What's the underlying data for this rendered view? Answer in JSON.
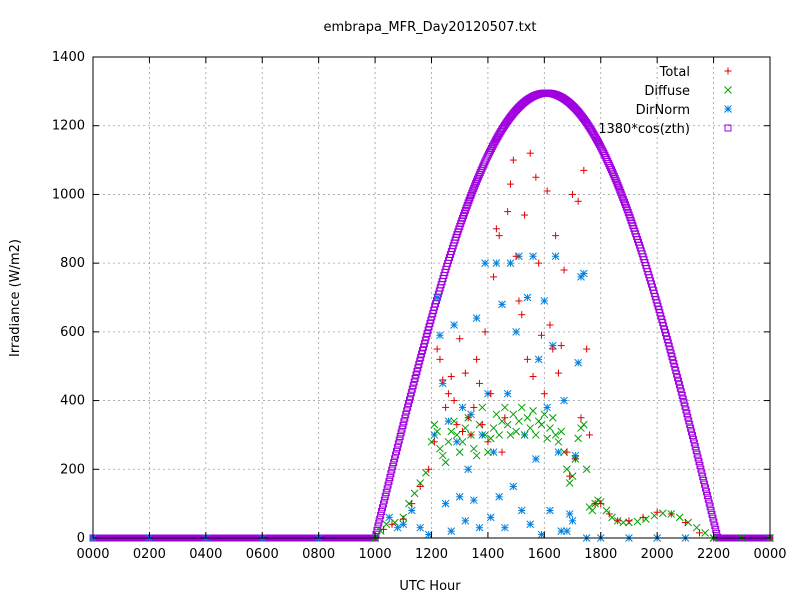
{
  "chart_data": {
    "type": "scatter",
    "title": "embrapa_MFR_Day20120507.txt",
    "xlabel": "UTC Hour",
    "ylabel": "Irradiance (W/m2)",
    "xlim": [
      0,
      24
    ],
    "ylim": [
      0,
      1400
    ],
    "grid": true,
    "legend_position": "top-right",
    "x_ticks": [
      {
        "value": 0,
        "label": "0000"
      },
      {
        "value": 2,
        "label": "0200"
      },
      {
        "value": 4,
        "label": "0400"
      },
      {
        "value": 6,
        "label": "0600"
      },
      {
        "value": 8,
        "label": "0800"
      },
      {
        "value": 10,
        "label": "1000"
      },
      {
        "value": 12,
        "label": "1200"
      },
      {
        "value": 14,
        "label": "1400"
      },
      {
        "value": 16,
        "label": "1600"
      },
      {
        "value": 18,
        "label": "1800"
      },
      {
        "value": 20,
        "label": "2000"
      },
      {
        "value": 22,
        "label": "2200"
      },
      {
        "value": 24,
        "label": "0000"
      }
    ],
    "y_ticks": [
      0,
      200,
      400,
      600,
      800,
      1000,
      1200,
      1400
    ],
    "series": [
      {
        "name": "Total",
        "marker": "plus",
        "color": "#e00000",
        "points": [
          [
            10.0,
            0
          ],
          [
            10.3,
            25
          ],
          [
            10.6,
            40
          ],
          [
            11.0,
            55
          ],
          [
            11.3,
            100
          ],
          [
            11.6,
            150
          ],
          [
            11.9,
            200
          ],
          [
            12.1,
            280
          ],
          [
            12.2,
            550
          ],
          [
            12.3,
            520
          ],
          [
            12.4,
            460
          ],
          [
            12.5,
            380
          ],
          [
            12.6,
            420
          ],
          [
            12.7,
            470
          ],
          [
            12.8,
            400
          ],
          [
            12.9,
            330
          ],
          [
            13.0,
            580
          ],
          [
            13.1,
            310
          ],
          [
            13.2,
            480
          ],
          [
            13.3,
            350
          ],
          [
            13.4,
            300
          ],
          [
            13.5,
            380
          ],
          [
            13.6,
            520
          ],
          [
            13.7,
            450
          ],
          [
            13.8,
            330
          ],
          [
            13.9,
            600
          ],
          [
            14.0,
            280
          ],
          [
            14.1,
            420
          ],
          [
            14.2,
            760
          ],
          [
            14.3,
            900
          ],
          [
            14.4,
            880
          ],
          [
            14.5,
            250
          ],
          [
            14.6,
            350
          ],
          [
            14.7,
            950
          ],
          [
            14.8,
            1030
          ],
          [
            14.9,
            1100
          ],
          [
            15.0,
            820
          ],
          [
            15.1,
            690
          ],
          [
            15.2,
            650
          ],
          [
            15.3,
            940
          ],
          [
            15.4,
            520
          ],
          [
            15.5,
            1120
          ],
          [
            15.6,
            470
          ],
          [
            15.7,
            1050
          ],
          [
            15.8,
            800
          ],
          [
            15.9,
            590
          ],
          [
            16.0,
            420
          ],
          [
            16.1,
            1010
          ],
          [
            16.2,
            620
          ],
          [
            16.3,
            550
          ],
          [
            16.4,
            880
          ],
          [
            16.5,
            480
          ],
          [
            16.6,
            560
          ],
          [
            16.7,
            780
          ],
          [
            16.8,
            250
          ],
          [
            16.9,
            180
          ],
          [
            17.0,
            1000
          ],
          [
            17.1,
            230
          ],
          [
            17.2,
            980
          ],
          [
            17.3,
            350
          ],
          [
            17.4,
            1070
          ],
          [
            17.5,
            550
          ],
          [
            17.6,
            300
          ],
          [
            17.8,
            100
          ],
          [
            18.0,
            100
          ],
          [
            18.3,
            70
          ],
          [
            18.6,
            50
          ],
          [
            19.0,
            50
          ],
          [
            19.5,
            60
          ],
          [
            20.0,
            75
          ],
          [
            20.5,
            70
          ],
          [
            21.0,
            45
          ],
          [
            21.5,
            15
          ],
          [
            22.0,
            0
          ],
          [
            23.0,
            0
          ],
          [
            24.0,
            0
          ]
        ]
      },
      {
        "name": "Diffuse",
        "marker": "cross",
        "color": "#00a000",
        "points": [
          [
            10.0,
            0
          ],
          [
            10.2,
            20
          ],
          [
            10.4,
            40
          ],
          [
            10.7,
            45
          ],
          [
            11.0,
            60
          ],
          [
            11.2,
            100
          ],
          [
            11.4,
            130
          ],
          [
            11.6,
            160
          ],
          [
            11.8,
            190
          ],
          [
            12.0,
            280
          ],
          [
            12.1,
            330
          ],
          [
            12.2,
            310
          ],
          [
            12.3,
            260
          ],
          [
            12.4,
            240
          ],
          [
            12.5,
            220
          ],
          [
            12.6,
            280
          ],
          [
            12.7,
            310
          ],
          [
            12.8,
            340
          ],
          [
            12.9,
            300
          ],
          [
            13.0,
            250
          ],
          [
            13.1,
            280
          ],
          [
            13.2,
            320
          ],
          [
            13.3,
            350
          ],
          [
            13.4,
            300
          ],
          [
            13.5,
            260
          ],
          [
            13.6,
            240
          ],
          [
            13.7,
            330
          ],
          [
            13.8,
            380
          ],
          [
            13.9,
            300
          ],
          [
            14.0,
            250
          ],
          [
            14.1,
            290
          ],
          [
            14.2,
            320
          ],
          [
            14.3,
            360
          ],
          [
            14.4,
            300
          ],
          [
            14.5,
            340
          ],
          [
            14.6,
            380
          ],
          [
            14.7,
            330
          ],
          [
            14.8,
            300
          ],
          [
            14.9,
            360
          ],
          [
            15.0,
            310
          ],
          [
            15.1,
            340
          ],
          [
            15.2,
            380
          ],
          [
            15.3,
            300
          ],
          [
            15.4,
            350
          ],
          [
            15.5,
            320
          ],
          [
            15.6,
            370
          ],
          [
            15.7,
            300
          ],
          [
            15.8,
            340
          ],
          [
            15.9,
            330
          ],
          [
            16.0,
            360
          ],
          [
            16.1,
            290
          ],
          [
            16.2,
            320
          ],
          [
            16.3,
            350
          ],
          [
            16.4,
            300
          ],
          [
            16.5,
            280
          ],
          [
            16.6,
            310
          ],
          [
            16.7,
            250
          ],
          [
            16.8,
            200
          ],
          [
            16.9,
            160
          ],
          [
            17.0,
            180
          ],
          [
            17.1,
            230
          ],
          [
            17.2,
            290
          ],
          [
            17.3,
            320
          ],
          [
            17.4,
            330
          ],
          [
            17.5,
            200
          ],
          [
            17.6,
            90
          ],
          [
            17.7,
            80
          ],
          [
            17.8,
            100
          ],
          [
            17.9,
            110
          ],
          [
            18.0,
            105
          ],
          [
            18.2,
            80
          ],
          [
            18.4,
            60
          ],
          [
            18.6,
            50
          ],
          [
            18.8,
            45
          ],
          [
            19.0,
            45
          ],
          [
            19.3,
            48
          ],
          [
            19.6,
            55
          ],
          [
            19.9,
            65
          ],
          [
            20.2,
            72
          ],
          [
            20.5,
            70
          ],
          [
            20.8,
            60
          ],
          [
            21.1,
            45
          ],
          [
            21.4,
            30
          ],
          [
            21.7,
            15
          ],
          [
            22.0,
            0
          ],
          [
            23.0,
            0
          ],
          [
            24.0,
            0
          ]
        ]
      },
      {
        "name": "DirNorm",
        "marker": "star",
        "color": "#0080e0",
        "points": [
          [
            0.0,
            0
          ],
          [
            2.0,
            0
          ],
          [
            4.0,
            0
          ],
          [
            6.0,
            0
          ],
          [
            8.0,
            0
          ],
          [
            10.0,
            0
          ],
          [
            10.5,
            60
          ],
          [
            10.8,
            30
          ],
          [
            11.0,
            40
          ],
          [
            11.3,
            80
          ],
          [
            11.6,
            30
          ],
          [
            11.9,
            10
          ],
          [
            12.1,
            300
          ],
          [
            12.2,
            700
          ],
          [
            12.3,
            590
          ],
          [
            12.4,
            450
          ],
          [
            12.5,
            100
          ],
          [
            12.6,
            340
          ],
          [
            12.7,
            20
          ],
          [
            12.8,
            620
          ],
          [
            12.9,
            280
          ],
          [
            13.0,
            120
          ],
          [
            13.1,
            380
          ],
          [
            13.2,
            50
          ],
          [
            13.3,
            200
          ],
          [
            13.4,
            360
          ],
          [
            13.5,
            110
          ],
          [
            13.6,
            640
          ],
          [
            13.7,
            30
          ],
          [
            13.8,
            300
          ],
          [
            13.9,
            800
          ],
          [
            14.0,
            420
          ],
          [
            14.1,
            60
          ],
          [
            14.2,
            250
          ],
          [
            14.3,
            800
          ],
          [
            14.4,
            120
          ],
          [
            14.5,
            680
          ],
          [
            14.6,
            30
          ],
          [
            14.7,
            420
          ],
          [
            14.8,
            800
          ],
          [
            14.9,
            150
          ],
          [
            15.0,
            600
          ],
          [
            15.1,
            820
          ],
          [
            15.2,
            80
          ],
          [
            15.3,
            300
          ],
          [
            15.4,
            700
          ],
          [
            15.5,
            40
          ],
          [
            15.6,
            820
          ],
          [
            15.7,
            230
          ],
          [
            15.8,
            520
          ],
          [
            15.9,
            10
          ],
          [
            16.0,
            690
          ],
          [
            16.1,
            380
          ],
          [
            16.2,
            80
          ],
          [
            16.3,
            560
          ],
          [
            16.4,
            820
          ],
          [
            16.5,
            250
          ],
          [
            16.6,
            20
          ],
          [
            16.7,
            400
          ],
          [
            16.8,
            20
          ],
          [
            16.9,
            70
          ],
          [
            17.0,
            50
          ],
          [
            17.1,
            240
          ],
          [
            17.2,
            510
          ],
          [
            17.3,
            760
          ],
          [
            17.4,
            770
          ],
          [
            17.5,
            0
          ],
          [
            18.0,
            0
          ],
          [
            19.0,
            0
          ],
          [
            20.0,
            0
          ],
          [
            21.0,
            0
          ],
          [
            22.0,
            0
          ],
          [
            23.0,
            0
          ],
          [
            24.0,
            0
          ]
        ]
      },
      {
        "name": "1380*cos(zth)",
        "marker": "square",
        "color": "#a000e0",
        "curve": {
          "x_start": 0,
          "x_end": 24,
          "step": 0.033,
          "sunrise": 10.0,
          "sunset": 22.15,
          "peak": 1295
        }
      }
    ]
  }
}
